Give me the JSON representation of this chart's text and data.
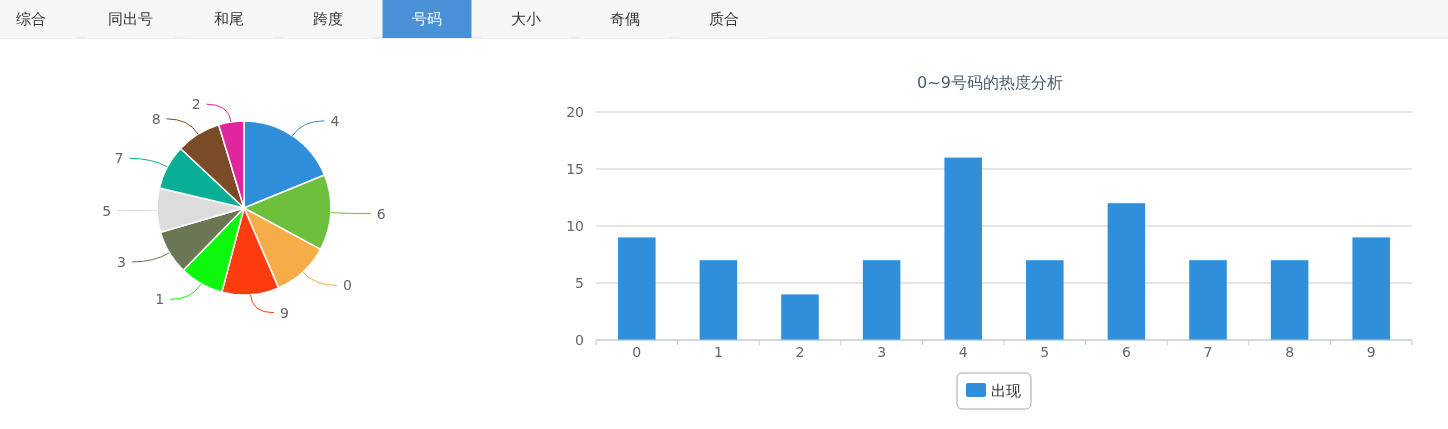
{
  "chart_data": [
    {
      "type": "other",
      "categories": [
        "综合",
        "同出号",
        "和尾",
        "跨度",
        "号码",
        "大小",
        "奇偶",
        "质合"
      ],
      "colors": [
        "#f6f6f6",
        "#f6f6f6",
        "#f6f6f6",
        "#f6f6f6",
        "#4a90d6",
        "#f6f6f6",
        "#f6f6f6",
        "#f6f6f6"
      ]
    },
    {
      "type": "pie",
      "categories": [
        "4",
        "6",
        "0",
        "9",
        "1",
        "3",
        "5",
        "7",
        "8",
        "2"
      ],
      "values": [
        18.8,
        14.1,
        10.6,
        10.6,
        8.2,
        8.2,
        8.2,
        8.3,
        8.3,
        4.7
      ],
      "colors": [
        "#2f8fdb",
        "#6ebf3c",
        "#f7ac4a",
        "#ff3c0f",
        "#0df70d",
        "#6b7754",
        "#dcdcdc",
        "#0aae96",
        "#7a4b26",
        "#e0259f"
      ]
    },
    {
      "type": "bar",
      "title": "0~9号码的热度分析",
      "categories": [
        "0",
        "1",
        "2",
        "3",
        "4",
        "5",
        "6",
        "7",
        "8",
        "9"
      ],
      "series": [
        {
          "name": "出现",
          "color": "#2f8fdb",
          "values": [
            9,
            7,
            4,
            7,
            16,
            7,
            12,
            7,
            7,
            9
          ]
        }
      ],
      "ylim": [
        0,
        20
      ],
      "yticks": [
        0,
        5,
        10,
        15,
        20
      ],
      "grid": "y",
      "legend": "bottom"
    }
  ]
}
